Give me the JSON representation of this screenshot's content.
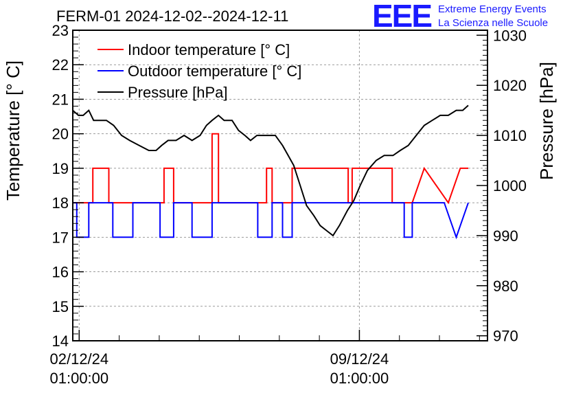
{
  "chart_data": {
    "type": "line",
    "title": "FERM-01 2024-12-02--2024-12-11",
    "ylabel": "Temperature [° C]",
    "y2label": "Pressure [hPa]",
    "ylim": [
      14,
      23
    ],
    "y2lim": [
      969,
      1031
    ],
    "xlim": [
      -0.16,
      10.2
    ],
    "x_ticks": [
      {
        "x": 0,
        "date": "02/12/24",
        "time": "01:00:00"
      },
      {
        "x": 7,
        "date": "09/12/24",
        "time": "01:00:00"
      }
    ],
    "y_ticks": [
      14,
      15,
      16,
      17,
      18,
      19,
      20,
      21,
      22,
      23
    ],
    "y2_ticks": [
      970,
      980,
      990,
      1000,
      1010,
      1020,
      1030
    ],
    "grid": true,
    "legend_position": "top-left",
    "series": [
      {
        "name": "Indoor temperature [° C]",
        "axis": "left",
        "color": "#ff0000",
        "x": [
          -0.16,
          0.34,
          0.34,
          0.74,
          0.74,
          1.24,
          1.24,
          2.12,
          2.12,
          2.36,
          2.36,
          2.82,
          2.82,
          3.32,
          3.32,
          3.48,
          3.48,
          3.78,
          3.78,
          4.68,
          4.68,
          4.82,
          4.82,
          4.98,
          4.98,
          5.32,
          5.32,
          6.72,
          6.72,
          6.82,
          6.82,
          7.18,
          7.18,
          7.82,
          7.82,
          8.32,
          8.62,
          9.22,
          9.52,
          9.72
        ],
        "y": [
          18,
          18,
          19,
          19,
          18,
          18,
          18,
          18,
          19,
          19,
          18,
          18,
          18,
          18,
          20,
          20,
          18,
          18,
          18,
          18,
          19,
          19,
          18,
          18,
          18,
          18,
          19,
          19,
          18,
          18,
          19,
          19,
          19,
          19,
          18,
          18,
          19,
          18,
          19,
          19
        ]
      },
      {
        "name": "Outdoor temperature [° C]",
        "axis": "left",
        "color": "#0000ff",
        "x": [
          -0.16,
          -0.06,
          -0.06,
          0.24,
          0.24,
          0.84,
          0.84,
          1.34,
          1.34,
          2.02,
          2.02,
          2.36,
          2.36,
          2.82,
          2.82,
          3.32,
          3.32,
          3.48,
          3.48,
          4.46,
          4.46,
          4.82,
          4.82,
          5.08,
          5.08,
          5.32,
          5.32,
          8.12,
          8.12,
          8.32,
          8.32,
          9.12,
          9.42,
          9.72
        ],
        "y": [
          18,
          18,
          17,
          17,
          18,
          18,
          17,
          17,
          18,
          18,
          17,
          17,
          18,
          18,
          17,
          17,
          18,
          18,
          18,
          18,
          17,
          17,
          18,
          18,
          17,
          17,
          18,
          18,
          17,
          17,
          18,
          18,
          17,
          18
        ]
      },
      {
        "name": "Pressure [hPa]",
        "axis": "right",
        "color": "#000000",
        "x": [
          -0.16,
          -0.02,
          0.1,
          0.24,
          0.36,
          0.5,
          0.68,
          0.86,
          1.06,
          1.26,
          1.5,
          1.74,
          1.92,
          2.06,
          2.22,
          2.42,
          2.62,
          2.82,
          3.02,
          3.18,
          3.32,
          3.48,
          3.62,
          3.82,
          3.98,
          4.14,
          4.28,
          4.44,
          4.58,
          4.74,
          4.9,
          5.08,
          5.22,
          5.36,
          5.52,
          5.68,
          5.86,
          6.02,
          6.18,
          6.34,
          6.5,
          6.7,
          6.86,
          7.02,
          7.2,
          7.42,
          7.62,
          7.84,
          8.02,
          8.22,
          8.42,
          8.62,
          8.82,
          9.02,
          9.22,
          9.42,
          9.58,
          9.72
        ],
        "y": [
          1015,
          1014,
          1014,
          1015,
          1013,
          1013,
          1013,
          1012,
          1010,
          1009,
          1008,
          1007,
          1007,
          1008,
          1009,
          1009,
          1010,
          1009,
          1010,
          1012,
          1013,
          1014,
          1013,
          1013,
          1011,
          1010,
          1009,
          1010,
          1010,
          1010,
          1010,
          1008,
          1006,
          1004,
          1000,
          996,
          994,
          992,
          991,
          990,
          992,
          995,
          997,
          1000,
          1003,
          1005,
          1006,
          1006,
          1007,
          1008,
          1010,
          1012,
          1013,
          1014,
          1014,
          1015,
          1015,
          1016
        ]
      }
    ]
  },
  "logo": {
    "mark": "EEE",
    "line1": "Extreme Energy Events",
    "line2": "La Scienza nelle Scuole"
  }
}
